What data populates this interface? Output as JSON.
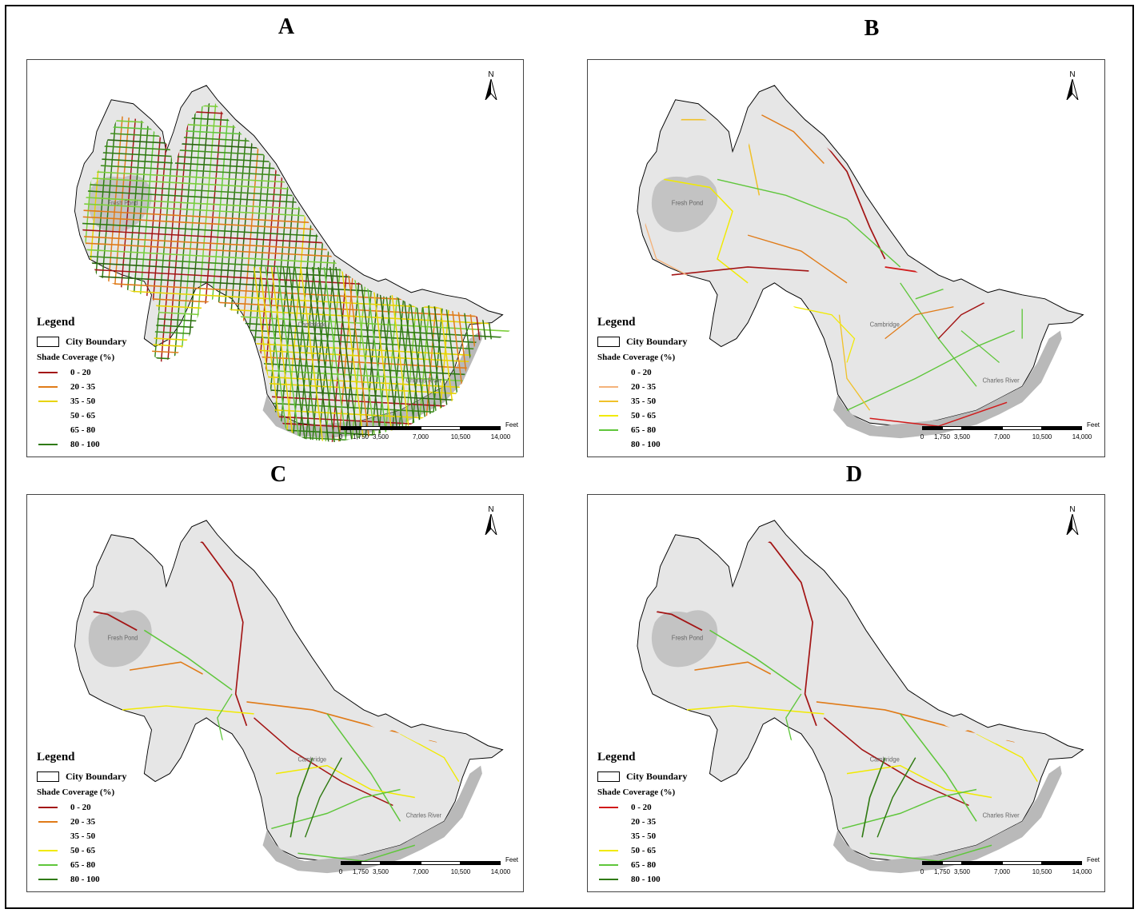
{
  "panels": [
    {
      "id": "A",
      "title": "A",
      "legend_title": "Legend",
      "boundary_label": "City Boundary",
      "coverage_label": "Shade Coverage  (%)",
      "classes": [
        {
          "label": "0 - 20",
          "color": "#a31515"
        },
        {
          "label": "20 - 35",
          "color": "#e07b18"
        },
        {
          "label": "35 - 50",
          "color": "#e8d400"
        },
        {
          "label": "50 - 65",
          "color": ""
        },
        {
          "label": "65 - 80",
          "color": ""
        },
        {
          "label": "80 - 100",
          "color": "#2f7a12"
        }
      ],
      "scale": {
        "unit": "Feet",
        "ticks": [
          "0",
          "1,750",
          "3,500",
          "7,000",
          "10,500",
          "14,000"
        ]
      },
      "north": "N",
      "place_labels": [
        "Fresh Pond",
        "Cambridge",
        "Charles River"
      ],
      "network": "dense"
    },
    {
      "id": "B",
      "title": "B",
      "legend_title": "Legend",
      "boundary_label": "City Boundary",
      "coverage_label": "Shade Coverage  (%)",
      "classes": [
        {
          "label": "0 - 20",
          "color": ""
        },
        {
          "label": "20 - 35",
          "color": "#f4b27a"
        },
        {
          "label": "35 - 50",
          "color": "#f0c12a"
        },
        {
          "label": "50 - 65",
          "color": "#f1ea00"
        },
        {
          "label": "65 - 80",
          "color": "#5fc63b"
        },
        {
          "label": "80 - 100",
          "color": ""
        }
      ],
      "scale": {
        "unit": "Feet",
        "ticks": [
          "0",
          "1,750",
          "3,500",
          "7,000",
          "10,500",
          "14,000"
        ]
      },
      "north": "N",
      "place_labels": [
        "Fresh Pond",
        "Cambridge",
        "Charles River"
      ],
      "network": "arterial"
    },
    {
      "id": "C",
      "title": "C",
      "legend_title": "Legend",
      "boundary_label": "City Boundary",
      "coverage_label": "Shade Coverage  (%)",
      "classes": [
        {
          "label": "0 - 20",
          "color": "#a31515"
        },
        {
          "label": "20 - 35",
          "color": "#e07b18"
        },
        {
          "label": "35 - 50",
          "color": ""
        },
        {
          "label": "50 - 65",
          "color": "#f1ea00"
        },
        {
          "label": "65 - 80",
          "color": "#5fc63b"
        },
        {
          "label": "80 - 100",
          "color": "#2f7a12"
        }
      ],
      "scale": {
        "unit": "Feet",
        "ticks": [
          "0",
          "1,750",
          "3,500",
          "7,000",
          "10,500",
          "14,000"
        ]
      },
      "north": "N",
      "place_labels": [
        "Fresh Pond",
        "Cambridge",
        "Charles River"
      ],
      "network": "major"
    },
    {
      "id": "D",
      "title": "D",
      "legend_title": "Legend",
      "boundary_label": "City Boundary",
      "coverage_label": "Shade Coverage  (%)",
      "classes": [
        {
          "label": "0 - 20",
          "color": "#d11a1a"
        },
        {
          "label": "20 - 35",
          "color": ""
        },
        {
          "label": "35 - 50",
          "color": ""
        },
        {
          "label": "50 - 65",
          "color": "#f1ea00"
        },
        {
          "label": "65 - 80",
          "color": "#5fc63b"
        },
        {
          "label": "80 - 100",
          "color": "#2f7a12"
        }
      ],
      "scale": {
        "unit": "Feet",
        "ticks": [
          "0",
          "1,750",
          "3,500",
          "7,000",
          "10,500",
          "14,000"
        ]
      },
      "north": "N",
      "place_labels": [
        "Fresh Pond",
        "Cambridge",
        "Charles River"
      ],
      "network": "major"
    }
  ]
}
